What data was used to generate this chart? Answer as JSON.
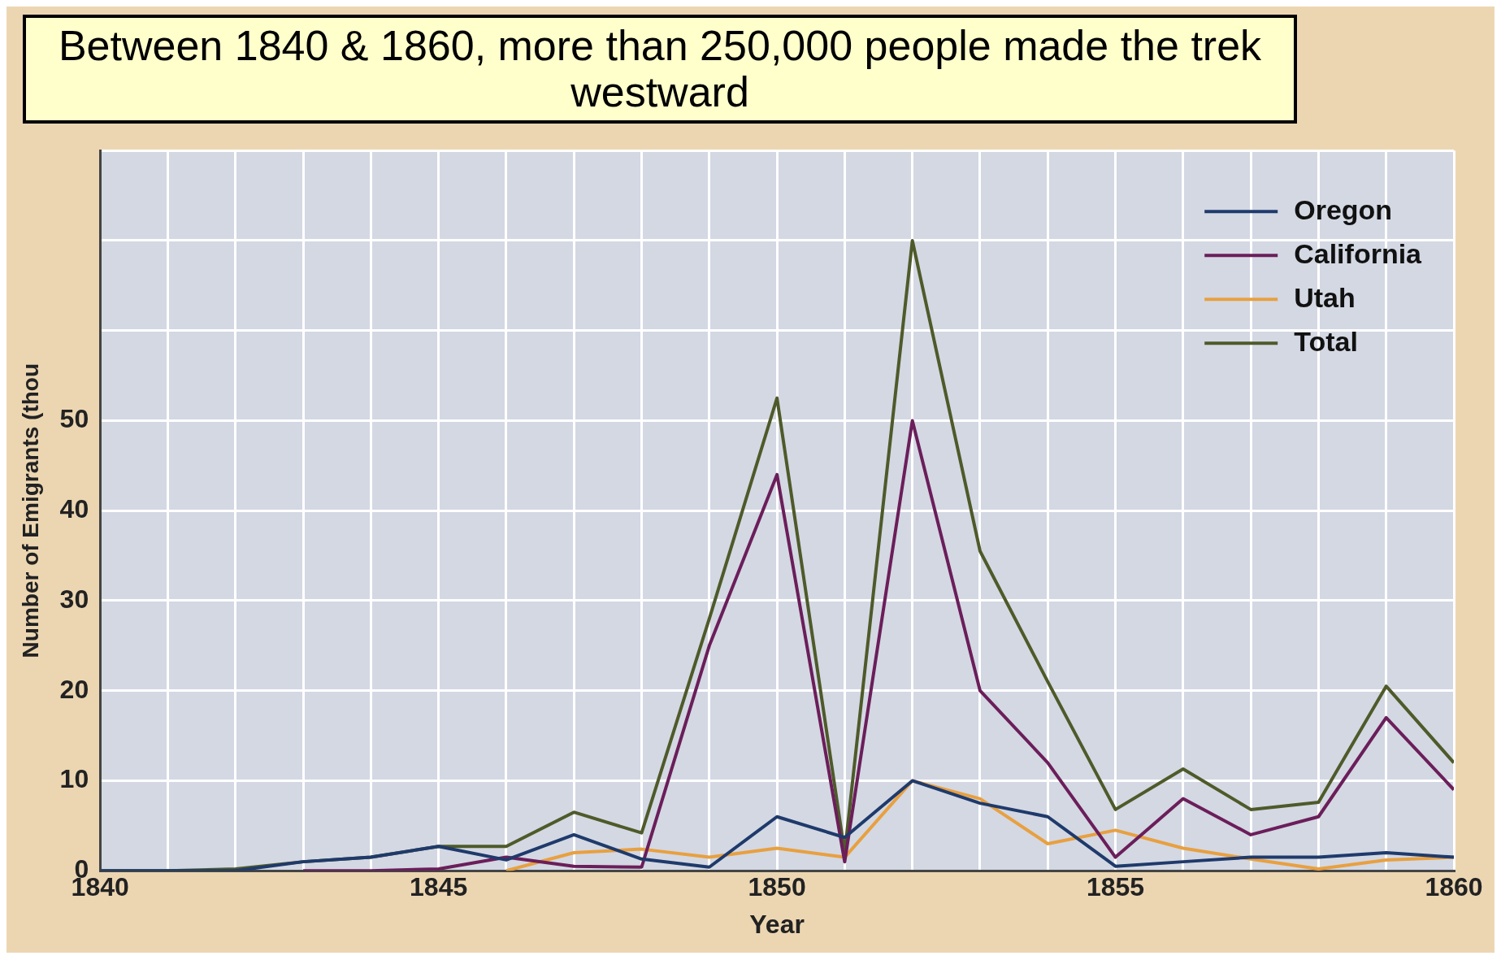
{
  "chart_data": {
    "type": "line",
    "title": "Between 1840 & 1860, more than 250,000 people made the trek westward",
    "xlabel": "Year",
    "ylabel": "Number of Emigrants (thou",
    "x": [
      1840,
      1841,
      1842,
      1843,
      1844,
      1845,
      1846,
      1847,
      1848,
      1849,
      1850,
      1851,
      1852,
      1853,
      1854,
      1855,
      1856,
      1857,
      1858,
      1859,
      1860
    ],
    "series": [
      {
        "name": "Oregon",
        "color": "#1f3a6b",
        "values": [
          0,
          0,
          0,
          1,
          1.5,
          2.7,
          1.2,
          4,
          1.3,
          0.4,
          6,
          3.7,
          10,
          7.5,
          6,
          0.5,
          1,
          1.5,
          1.5,
          2,
          1.5
        ]
      },
      {
        "name": "California",
        "color": "#6b1e5a",
        "values": [
          null,
          null,
          null,
          0,
          0,
          0.2,
          1.5,
          0.5,
          0.4,
          25,
          44,
          1,
          50,
          20,
          12,
          1.5,
          8,
          4,
          6,
          17,
          9
        ]
      },
      {
        "name": "Utah",
        "color": "#e8a040",
        "values": [
          null,
          null,
          null,
          null,
          null,
          null,
          0,
          2,
          2.4,
          1.5,
          2.5,
          1.5,
          10,
          8,
          3,
          4.5,
          2.5,
          1.3,
          0.2,
          1.2,
          1.5
        ]
      },
      {
        "name": "Total",
        "color": "#4f5a2a",
        "values": [
          0,
          0,
          0.2,
          1,
          1.5,
          2.7,
          2.7,
          6.5,
          4.2,
          28,
          52.5,
          2,
          70,
          35.5,
          21,
          6.8,
          11.3,
          6.8,
          7.6,
          20.5,
          12
        ]
      }
    ],
    "xlim": [
      1840,
      1860
    ],
    "xticks": [
      1840,
      {
        "value": 1841,
        "label": null
      },
      {
        "value": 1842,
        "label": null
      },
      {
        "value": 1843,
        "label": null
      },
      {
        "value": 1844,
        "label": null
      },
      1845,
      {
        "value": 1846,
        "label": null
      },
      {
        "value": 1847,
        "label": null
      },
      {
        "value": 1848,
        "label": null
      },
      {
        "value": 1849,
        "label": null
      },
      1850,
      {
        "value": 1851,
        "label": null
      },
      {
        "value": 1852,
        "label": null
      },
      {
        "value": 1853,
        "label": null
      },
      {
        "value": 1854,
        "label": null
      },
      1855,
      {
        "value": 1856,
        "label": null
      },
      {
        "value": 1857,
        "label": null
      },
      {
        "value": 1858,
        "label": null
      },
      {
        "value": 1859,
        "label": null
      },
      1860
    ],
    "ylim": [
      0,
      80
    ],
    "yticks": [
      0,
      10,
      20,
      30,
      40,
      50,
      {
        "value": 60,
        "label": null
      },
      {
        "value": 70,
        "label": null
      },
      {
        "value": 80,
        "label": null
      }
    ],
    "grid": true,
    "legend": "top right",
    "marker": "none",
    "line_style": "solid"
  }
}
